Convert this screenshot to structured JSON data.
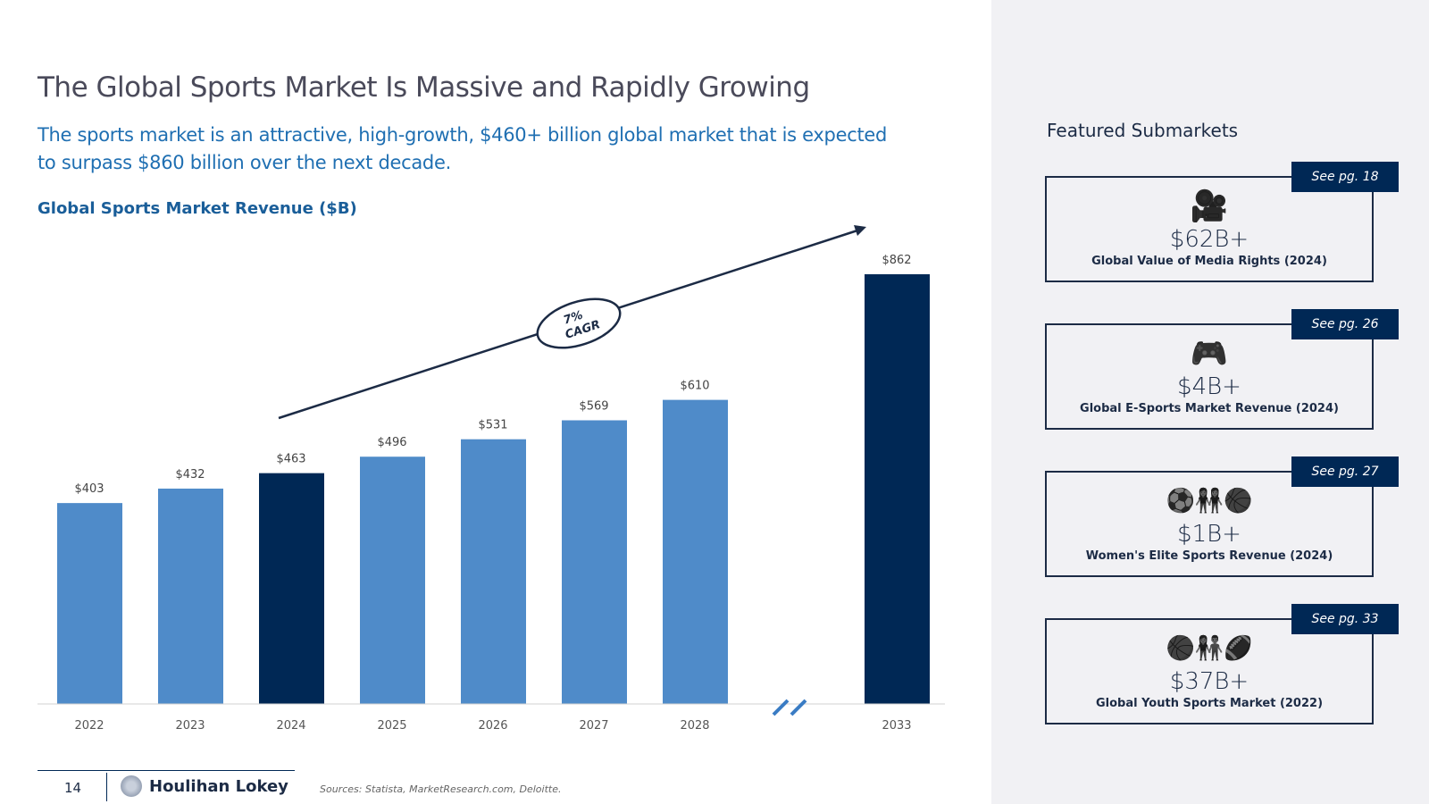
{
  "title": "The Global Sports Market Is Massive and Rapidly Growing",
  "subtitle": "The sports market is an attractive, high-growth, $460+ billion global market that is expected to surpass $860 billion over the next decade.",
  "chart_data": {
    "type": "bar",
    "title": "Global Sports Market Revenue ($B)",
    "categories": [
      "2022",
      "2023",
      "2024",
      "2025",
      "2026",
      "2027",
      "2028",
      "2033"
    ],
    "values": [
      403,
      432,
      463,
      496,
      531,
      569,
      610,
      862
    ],
    "data_labels": [
      "$403",
      "$432",
      "$463",
      "$496",
      "$531",
      "$569",
      "$610",
      "$862"
    ],
    "highlighted": [
      "2024",
      "2033"
    ],
    "ylim": [
      0,
      862
    ],
    "annotation": [
      "7%",
      "CAGR"
    ],
    "axis_break_before": "2033",
    "colors": {
      "base": "#4f8bc9",
      "highlight": "#002855"
    }
  },
  "sidebar": {
    "heading": "Featured Submarkets",
    "cards": [
      {
        "tag": "See pg. 18",
        "icon": "video-camera-icon",
        "value": "$62B+",
        "label": "Global Value of Media Rights (2024)"
      },
      {
        "tag": "See pg. 26",
        "icon": "gamepad-icon",
        "value": "$4B+",
        "label": "Global E-Sports Market Revenue (2024)"
      },
      {
        "tag": "See pg. 27",
        "icon": "women-athletes-icon",
        "value": "$1B+",
        "label": "Women's Elite Sports Revenue (2024)"
      },
      {
        "tag": "See pg. 33",
        "icon": "youth-sports-icon",
        "value": "$37B+",
        "label": "Global Youth Sports Market (2022)"
      }
    ]
  },
  "footer": {
    "page": "14",
    "brand": "Houlihan Lokey",
    "sources": "Sources: Statista, MarketResearch.com, Deloitte."
  }
}
